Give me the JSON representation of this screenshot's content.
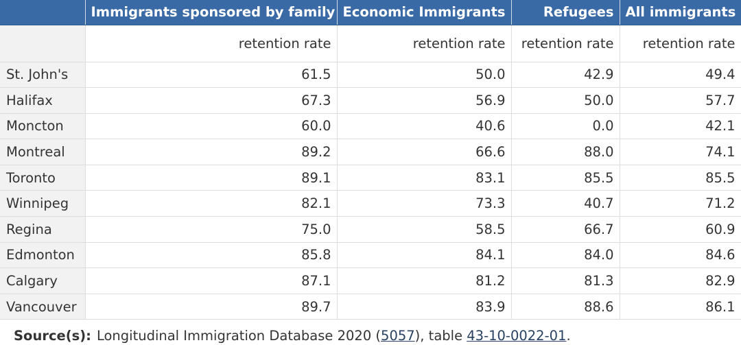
{
  "table": {
    "corner_header": "",
    "columns": [
      "Immigrants sponsored by family",
      "Economic Immigrants",
      "Refugees",
      "All immigrants"
    ],
    "subheaders": [
      "retention rate",
      "retention rate",
      "retention rate",
      "retention rate"
    ],
    "rows": [
      {
        "label": "St. John's",
        "values": [
          "61.5",
          "50.0",
          "42.9",
          "49.4"
        ]
      },
      {
        "label": "Halifax",
        "values": [
          "67.3",
          "56.9",
          "50.0",
          "57.7"
        ]
      },
      {
        "label": "Moncton",
        "values": [
          "60.0",
          "40.6",
          "0.0",
          "42.1"
        ]
      },
      {
        "label": "Montreal",
        "values": [
          "89.2",
          "66.6",
          "88.0",
          "74.1"
        ]
      },
      {
        "label": "Toronto",
        "values": [
          "89.1",
          "83.1",
          "85.5",
          "85.5"
        ]
      },
      {
        "label": "Winnipeg",
        "values": [
          "82.1",
          "73.3",
          "40.7",
          "71.2"
        ]
      },
      {
        "label": "Regina",
        "values": [
          "75.0",
          "58.5",
          "66.7",
          "60.9"
        ]
      },
      {
        "label": "Edmonton",
        "values": [
          "85.8",
          "84.1",
          "84.0",
          "84.6"
        ]
      },
      {
        "label": "Calgary",
        "values": [
          "87.1",
          "81.2",
          "81.3",
          "82.9"
        ]
      },
      {
        "label": "Vancouver",
        "values": [
          "89.7",
          "83.9",
          "88.6",
          "86.1"
        ]
      }
    ]
  },
  "source": {
    "label": "Source(s):",
    "text_before": "Longitudinal Immigration Database 2020 (",
    "link1": "5057",
    "text_middle": "), table ",
    "link2": "43-10-0022-01",
    "text_after": "."
  },
  "colors": {
    "header_bg": "#3a6aa5",
    "header_text": "#ffffff",
    "row_header_bg": "#f2f2f2",
    "link": "#284162"
  }
}
